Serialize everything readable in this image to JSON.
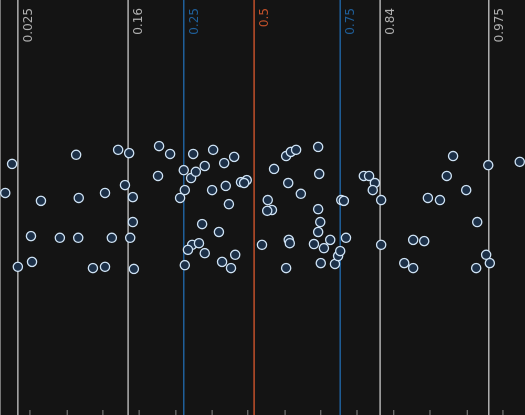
{
  "chart_data": {
    "type": "scatter",
    "x": [
      2.3,
      1.0,
      7.8,
      3.4,
      5.9,
      6.1,
      14.5,
      15.0,
      11.4,
      14.9,
      17.7,
      20.0,
      20.0,
      21.3,
      22.5,
      24.6,
      23.8,
      25.3,
      25.3,
      24.8,
      25.5,
      30.3,
      32.4,
      30.1,
      35.0,
      34.3,
      35.2,
      36.8,
      36.4,
      37.3,
      39.0,
      40.6,
      40.4,
      42.7,
      43.0,
      44.6,
      45.9,
      47.0,
      46.5,
      43.6,
      38.5,
      41.7,
      36.6,
      35.8,
      37.9,
      39.0,
      35.2,
      42.3,
      44.0,
      44.8,
      49.9,
      52.2,
      51.0,
      51.8,
      50.9,
      54.5,
      55.4,
      56.4,
      54.9,
      57.3,
      55.0,
      55.2,
      54.5,
      60.6,
      60.8,
      60.6,
      61.0,
      60.6,
      59.8,
      61.7,
      61.1,
      63.8,
      64.4,
      64.8,
      65.0,
      65.9,
      62.9,
      69.3,
      70.3,
      71.4,
      71.0,
      72.6,
      72.6,
      77.0,
      78.7,
      78.7,
      80.8,
      81.5,
      83.8,
      85.1,
      86.3,
      88.8,
      90.9,
      93.0,
      92.6,
      93.3,
      90.7,
      99.0,
      65.5
    ],
    "values": [
      60.5,
      53.5,
      51.6,
      35.7,
      43.1,
      36.9,
      62.7,
      52.3,
      42.7,
      42.7,
      35.4,
      35.7,
      53.5,
      42.7,
      63.9,
      63.1,
      55.4,
      52.5,
      46.5,
      42.7,
      35.2,
      64.8,
      62.9,
      57.6,
      59.0,
      52.3,
      54.2,
      62.9,
      57.1,
      58.6,
      60.0,
      63.9,
      54.2,
      60.7,
      55.2,
      62.2,
      56.1,
      56.6,
      55.9,
      50.8,
      46.0,
      44.1,
      41.0,
      39.8,
      41.4,
      39.0,
      36.1,
      36.9,
      35.4,
      38.6,
      41.0,
      59.3,
      51.8,
      49.4,
      49.2,
      62.4,
      63.4,
      63.9,
      55.9,
      53.3,
      42.2,
      41.4,
      35.4,
      64.6,
      58.1,
      49.6,
      46.5,
      44.1,
      41.2,
      40.2,
      36.6,
      36.4,
      38.3,
      39.5,
      51.8,
      42.7,
      42.2,
      57.6,
      57.6,
      55.9,
      54.2,
      51.8,
      41.0,
      36.6,
      35.4,
      42.2,
      41.9,
      52.3,
      51.8,
      57.6,
      62.4,
      54.2,
      46.5,
      60.2,
      38.6,
      36.6,
      35.4,
      61.0,
      51.6
    ],
    "color": "#cfe3f5",
    "xlim": [
      0,
      100
    ],
    "ylim": [
      0,
      100
    ],
    "xticks": [
      5.7,
      12.8,
      19.6,
      26.5,
      33.5,
      40.4,
      47.2,
      54.3,
      61.1,
      68.0,
      75.0,
      81.9,
      89.0,
      95.8
    ],
    "reference_lines": [
      {
        "name": "0.025",
        "value": 3.4,
        "color": "#b0b0b0"
      },
      {
        "name": "0.16",
        "value": 24.4,
        "color": "#b0b0b0"
      },
      {
        "name": "0.25",
        "value": 35.0,
        "color": "#1f5f9a"
      },
      {
        "name": "0.5",
        "value": 48.4,
        "color": "#c0502a"
      },
      {
        "name": "0.75",
        "value": 64.8,
        "color": "#1f5f9a"
      },
      {
        "name": "0.84",
        "value": 72.4,
        "color": "#b0b0b0"
      },
      {
        "name": "0.975",
        "value": 93.1,
        "color": "#b0b0b0"
      }
    ]
  }
}
